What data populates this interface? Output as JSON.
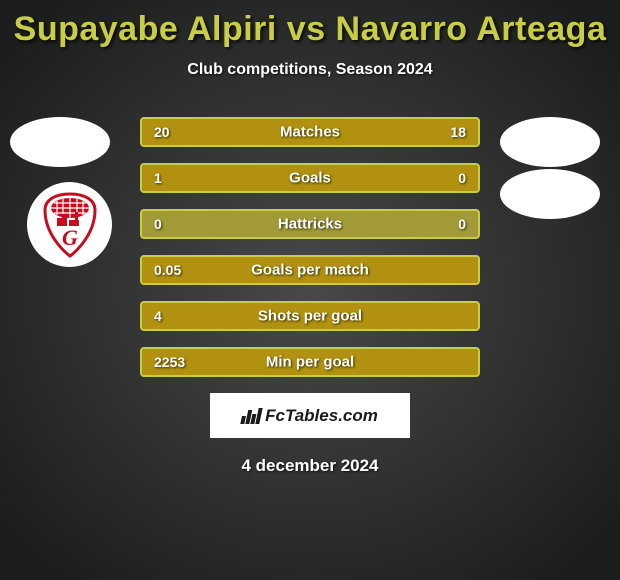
{
  "header": {
    "title": "Supayabe Alpiri vs Navarro Arteaga",
    "subtitle": "Club competitions, Season 2024"
  },
  "colors": {
    "accent": "#c9cc45",
    "bar_bg": "#a19a36",
    "bar_fill": "#b1910f",
    "bg_center": "#484a49",
    "bg_edge": "#1c1e1d",
    "club_red": "#c40d1f"
  },
  "stats": [
    {
      "label": "Matches",
      "p1": "20",
      "p2": "18",
      "p1_pct": 52,
      "p2_pct": 48
    },
    {
      "label": "Goals",
      "p1": "1",
      "p2": "0",
      "p1_pct": 77,
      "p2_pct": 23
    },
    {
      "label": "Hattricks",
      "p1": "0",
      "p2": "0",
      "p1_pct": 0,
      "p2_pct": 0
    },
    {
      "label": "Goals per match",
      "p1": "0.05",
      "p2": "",
      "p1_pct": 100,
      "p2_pct": 0
    },
    {
      "label": "Shots per goal",
      "p1": "4",
      "p2": "",
      "p1_pct": 100,
      "p2_pct": 0
    },
    {
      "label": "Min per goal",
      "p1": "2253",
      "p2": "",
      "p1_pct": 100,
      "p2_pct": 0
    }
  ],
  "branding": {
    "text": "FcTables.com"
  },
  "date": "4 december 2024"
}
